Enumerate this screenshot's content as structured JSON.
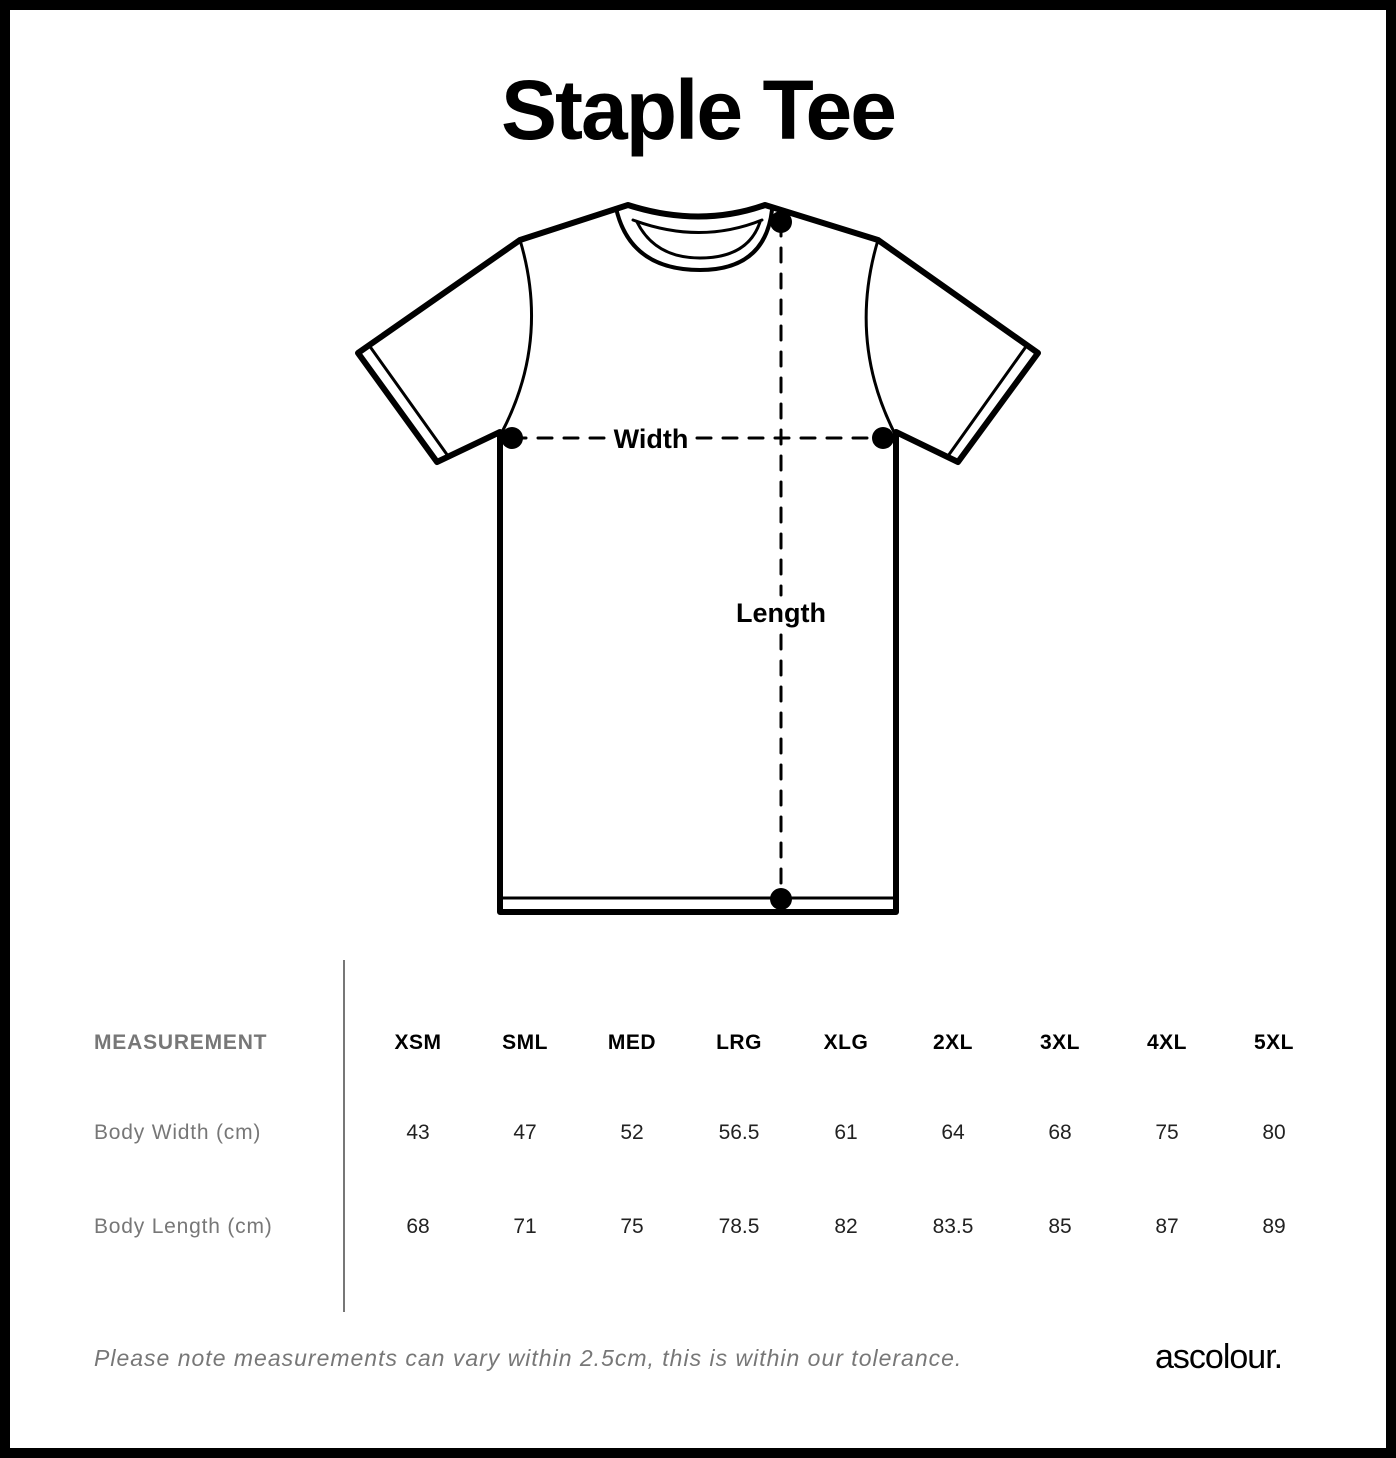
{
  "title": "Staple Tee",
  "diagram": {
    "width_label": "Width",
    "length_label": "Length"
  },
  "table": {
    "header_label": "MEASUREMENT",
    "sizes": [
      "XSM",
      "SML",
      "MED",
      "LRG",
      "XLG",
      "2XL",
      "3XL",
      "4XL",
      "5XL"
    ],
    "rows": [
      {
        "label": "Body Width (cm)",
        "values": [
          "43",
          "47",
          "52",
          "56.5",
          "61",
          "64",
          "68",
          "75",
          "80"
        ]
      },
      {
        "label": "Body Length (cm)",
        "values": [
          "68",
          "71",
          "75",
          "78.5",
          "82",
          "83.5",
          "85",
          "87",
          "89"
        ]
      }
    ]
  },
  "note": "Please note measurements can vary within 2.5cm, this is within our tolerance.",
  "logo": "ascolour."
}
